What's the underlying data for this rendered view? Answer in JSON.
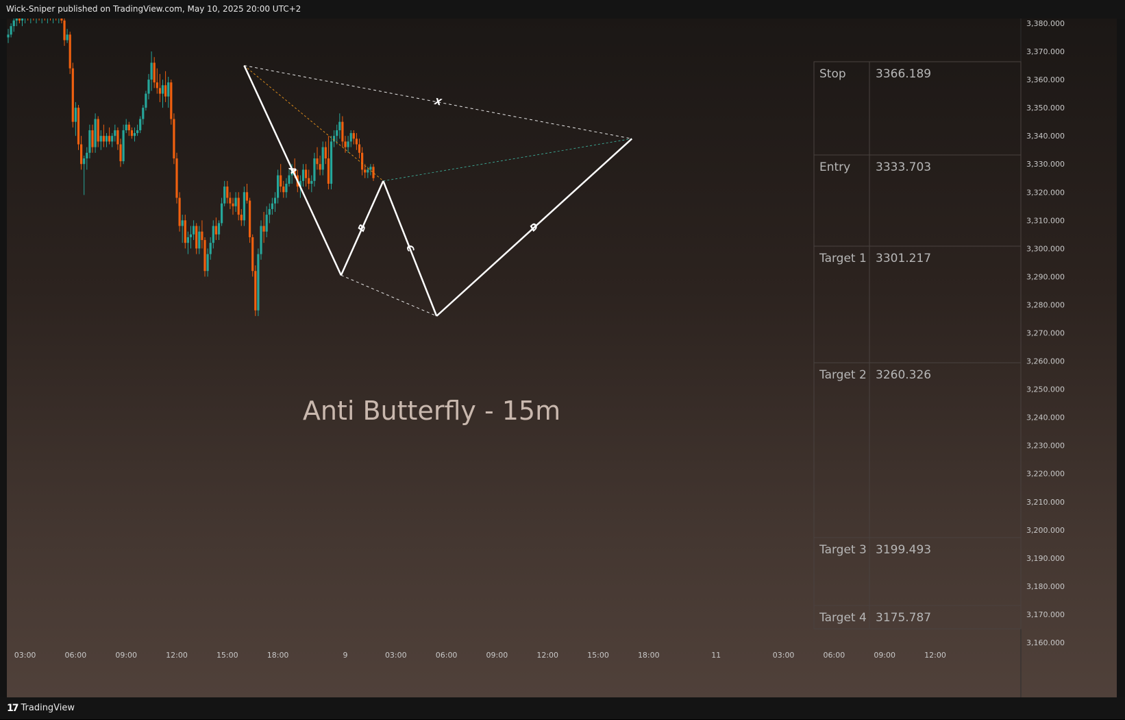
{
  "header": {
    "text": "Wick-Sniper published on TradingView.com, May 10, 2025 20:00 UTC+2"
  },
  "footer": {
    "brand": "TradingView",
    "logo_mark": "17"
  },
  "chart_data": {
    "type": "candlestick",
    "title": "Anti Butterfly - 15m",
    "symbol_unit": "price",
    "y_axis": {
      "ylim": [
        3155,
        3385
      ],
      "ticks": [
        "3,380.000",
        "3,370.000",
        "3,360.000",
        "3,350.000",
        "3,340.000",
        "3,330.000",
        "3,320.000",
        "3,310.000",
        "3,300.000",
        "3,290.000",
        "3,280.000",
        "3,270.000",
        "3,260.000",
        "3,250.000",
        "3,240.000",
        "3,230.000",
        "3,220.000",
        "3,210.000",
        "3,200.000",
        "3,190.000",
        "3,180.000",
        "3,170.000",
        "3,160.000"
      ],
      "tick_values": [
        3380,
        3370,
        3360,
        3350,
        3340,
        3330,
        3320,
        3310,
        3300,
        3290,
        3280,
        3270,
        3260,
        3250,
        3240,
        3230,
        3220,
        3210,
        3200,
        3190,
        3180,
        3170,
        3160
      ]
    },
    "x_axis": {
      "ticks": [
        "03:00",
        "06:00",
        "09:00",
        "12:00",
        "15:00",
        "18:00",
        "9",
        "03:00",
        "06:00",
        "09:00",
        "12:00",
        "15:00",
        "18:00",
        "11",
        "03:00",
        "06:00",
        "09:00",
        "12:00"
      ],
      "tick_bar_index": [
        6,
        24,
        42,
        60,
        78,
        96,
        120,
        138,
        156,
        174,
        192,
        210,
        228,
        252,
        276,
        294,
        312,
        330
      ],
      "bars_total_span": [
        0,
        360
      ]
    },
    "harmonic_pattern": {
      "name": "Anti Butterfly",
      "timeframe": "15m",
      "points": [
        {
          "label": "X",
          "bar": 84,
          "price": 3365
        },
        {
          "label": "A",
          "bar": 118.5,
          "price": 3290.5
        },
        {
          "label": "B",
          "bar": 133.5,
          "price": 3324
        },
        {
          "label": "C",
          "bar": 152.5,
          "price": 3276
        },
        {
          "label": "D",
          "bar": 222,
          "price": 3339
        }
      ],
      "leg_labels": [
        "A",
        "B",
        "C",
        "D",
        "X"
      ]
    },
    "levels_table": [
      {
        "label": "Stop",
        "value": "3366.189"
      },
      {
        "label": "Entry",
        "value": "3333.703"
      },
      {
        "label": "Target 1",
        "value": "3301.217"
      },
      {
        "label": "Target 2",
        "value": "3260.326"
      },
      {
        "label": "Target 3",
        "value": "3199.493"
      },
      {
        "label": "Target 4",
        "value": "3175.787"
      }
    ],
    "level_values": [
      3366.189,
      3333.703,
      3301.217,
      3260.326,
      3199.493,
      3175.787
    ],
    "candles": [
      [
        3375,
        3378,
        3373,
        3376
      ],
      [
        3376,
        3380,
        3375,
        3379
      ],
      [
        3379,
        3383,
        3377,
        3381
      ],
      [
        3381,
        3384,
        3379,
        3382
      ],
      [
        3382,
        3384,
        3380,
        3381
      ],
      [
        3381,
        3383,
        3379,
        3382
      ],
      [
        3382,
        3384,
        3380,
        3383
      ],
      [
        3383,
        3385,
        3381,
        3382
      ],
      [
        3382,
        3384,
        3380,
        3383
      ],
      [
        3383,
        3385,
        3381,
        3382
      ],
      [
        3382,
        3384,
        3380,
        3383
      ],
      [
        3383,
        3385,
        3381,
        3382
      ],
      [
        3382,
        3384,
        3380,
        3383
      ],
      [
        3383,
        3385,
        3381,
        3382
      ],
      [
        3382,
        3384,
        3380,
        3383
      ],
      [
        3383,
        3385,
        3381,
        3382
      ],
      [
        3382,
        3384,
        3380,
        3383
      ],
      [
        3383,
        3385,
        3381,
        3382
      ],
      [
        3382,
        3384,
        3380,
        3383
      ],
      [
        3383,
        3385,
        3380,
        3381
      ],
      [
        3381,
        3382,
        3372,
        3374
      ],
      [
        3374,
        3378,
        3373,
        3376
      ],
      [
        3376,
        3377,
        3362,
        3364
      ],
      [
        3364,
        3366,
        3343,
        3345
      ],
      [
        3345,
        3352,
        3340,
        3350
      ],
      [
        3350,
        3351,
        3335,
        3337
      ],
      [
        3337,
        3340,
        3328,
        3330
      ],
      [
        3330,
        3333,
        3319,
        3332
      ],
      [
        3332,
        3336,
        3328,
        3334
      ],
      [
        3334,
        3344,
        3332,
        3342
      ],
      [
        3342,
        3344,
        3334,
        3336
      ],
      [
        3336,
        3348,
        3334,
        3346
      ],
      [
        3346,
        3347,
        3336,
        3338
      ],
      [
        3338,
        3342,
        3335,
        3340
      ],
      [
        3340,
        3344,
        3336,
        3338
      ],
      [
        3338,
        3341,
        3336,
        3340
      ],
      [
        3340,
        3343,
        3337,
        3338
      ],
      [
        3338,
        3341,
        3336,
        3340
      ],
      [
        3340,
        3344,
        3338,
        3342
      ],
      [
        3342,
        3343,
        3335,
        3337
      ],
      [
        3337,
        3339,
        3329,
        3331
      ],
      [
        3331,
        3344,
        3330,
        3342
      ],
      [
        3342,
        3346,
        3341,
        3344
      ],
      [
        3344,
        3345,
        3340,
        3342
      ],
      [
        3342,
        3343,
        3339,
        3340
      ],
      [
        3340,
        3343,
        3338,
        3341
      ],
      [
        3341,
        3344,
        3340,
        3342
      ],
      [
        3342,
        3347,
        3341,
        3346
      ],
      [
        3346,
        3351,
        3344,
        3350
      ],
      [
        3350,
        3356,
        3349,
        3355
      ],
      [
        3355,
        3362,
        3353,
        3360
      ],
      [
        3360,
        3370,
        3356,
        3366
      ],
      [
        3366,
        3368,
        3357,
        3359
      ],
      [
        3359,
        3364,
        3355,
        3357
      ],
      [
        3357,
        3362,
        3352,
        3355
      ],
      [
        3355,
        3360,
        3350,
        3358
      ],
      [
        3358,
        3363,
        3352,
        3354
      ],
      [
        3354,
        3361,
        3350,
        3359
      ],
      [
        3359,
        3360,
        3344,
        3346
      ],
      [
        3346,
        3348,
        3330,
        3332
      ],
      [
        3332,
        3334,
        3316,
        3318
      ],
      [
        3318,
        3320,
        3306,
        3308
      ],
      [
        3308,
        3312,
        3302,
        3310
      ],
      [
        3310,
        3312,
        3300,
        3302
      ],
      [
        3302,
        3306,
        3298,
        3304
      ],
      [
        3304,
        3308,
        3300,
        3305
      ],
      [
        3305,
        3310,
        3303,
        3308
      ],
      [
        3308,
        3309,
        3298,
        3300
      ],
      [
        3300,
        3308,
        3298,
        3306
      ],
      [
        3306,
        3310,
        3300,
        3303
      ],
      [
        3303,
        3304,
        3290,
        3292
      ],
      [
        3292,
        3300,
        3290,
        3298
      ],
      [
        3298,
        3304,
        3296,
        3302
      ],
      [
        3302,
        3310,
        3300,
        3308
      ],
      [
        3308,
        3311,
        3303,
        3305
      ],
      [
        3305,
        3310,
        3303,
        3309
      ],
      [
        3309,
        3318,
        3308,
        3316
      ],
      [
        3316,
        3324,
        3315,
        3322
      ],
      [
        3322,
        3324,
        3316,
        3318
      ],
      [
        3318,
        3320,
        3314,
        3316
      ],
      [
        3316,
        3318,
        3312,
        3315
      ],
      [
        3315,
        3320,
        3313,
        3318
      ],
      [
        3318,
        3320,
        3310,
        3312
      ],
      [
        3312,
        3314,
        3308,
        3310
      ],
      [
        3310,
        3322,
        3308,
        3320
      ],
      [
        3320,
        3323,
        3316,
        3317
      ],
      [
        3317,
        3318,
        3302,
        3304
      ],
      [
        3304,
        3305,
        3290,
        3292
      ],
      [
        3292,
        3294,
        3276,
        3278
      ],
      [
        3278,
        3300,
        3276,
        3298
      ],
      [
        3298,
        3310,
        3296,
        3308
      ],
      [
        3308,
        3313,
        3302,
        3306
      ],
      [
        3306,
        3315,
        3304,
        3312
      ],
      [
        3312,
        3316,
        3309,
        3314
      ],
      [
        3314,
        3318,
        3312,
        3316
      ],
      [
        3316,
        3320,
        3313,
        3318
      ],
      [
        3318,
        3328,
        3316,
        3326
      ],
      [
        3326,
        3330,
        3320,
        3322
      ],
      [
        3322,
        3324,
        3318,
        3320
      ],
      [
        3320,
        3325,
        3318,
        3323
      ],
      [
        3323,
        3328,
        3322,
        3326
      ],
      [
        3326,
        3330,
        3323,
        3328
      ],
      [
        3328,
        3332,
        3325,
        3326
      ],
      [
        3326,
        3328,
        3320,
        3322
      ],
      [
        3322,
        3326,
        3318,
        3324
      ],
      [
        3324,
        3330,
        3322,
        3328
      ],
      [
        3328,
        3330,
        3322,
        3325
      ],
      [
        3325,
        3328,
        3321,
        3323
      ],
      [
        3323,
        3326,
        3320,
        3324
      ],
      [
        3324,
        3334,
        3322,
        3332
      ],
      [
        3332,
        3336,
        3328,
        3330
      ],
      [
        3330,
        3333,
        3326,
        3328
      ],
      [
        3328,
        3338,
        3326,
        3336
      ],
      [
        3336,
        3338,
        3330,
        3332
      ],
      [
        3332,
        3340,
        3321,
        3323
      ],
      [
        3323,
        3340,
        3321,
        3338
      ],
      [
        3338,
        3342,
        3336,
        3340
      ],
      [
        3340,
        3344,
        3337,
        3342
      ],
      [
        3342,
        3348,
        3339,
        3345
      ],
      [
        3345,
        3347,
        3336,
        3338
      ],
      [
        3338,
        3340,
        3334,
        3336
      ],
      [
        3336,
        3340,
        3334,
        3338
      ],
      [
        3338,
        3342,
        3336,
        3341
      ],
      [
        3341,
        3342,
        3337,
        3339
      ],
      [
        3339,
        3341,
        3335,
        3337
      ],
      [
        3337,
        3339,
        3332,
        3334
      ],
      [
        3334,
        3336,
        3326,
        3328
      ],
      [
        3328,
        3330,
        3325,
        3327
      ],
      [
        3327,
        3329,
        3325,
        3328
      ],
      [
        3328,
        3330,
        3326,
        3329
      ],
      [
        3329,
        3330,
        3324,
        3325
      ]
    ]
  }
}
